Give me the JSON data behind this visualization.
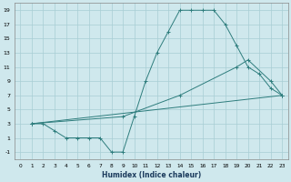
{
  "xlabel": "Humidex (Indice chaleur)",
  "xlim": [
    -0.5,
    23.5
  ],
  "ylim": [
    -2,
    20
  ],
  "xticks": [
    0,
    1,
    2,
    3,
    4,
    5,
    6,
    7,
    8,
    9,
    10,
    11,
    12,
    13,
    14,
    15,
    16,
    17,
    18,
    19,
    20,
    21,
    22,
    23
  ],
  "yticks": [
    -1,
    1,
    3,
    5,
    7,
    9,
    11,
    13,
    15,
    17,
    19
  ],
  "background_color": "#cfe8ed",
  "grid_color": "#a8cdd4",
  "line_color": "#2e7d7d",
  "line1_x": [
    1,
    2,
    3,
    4,
    5,
    6,
    7,
    8,
    9,
    10,
    11,
    12,
    13,
    14,
    15,
    16,
    17,
    18,
    19,
    20,
    21,
    22,
    23
  ],
  "line1_y": [
    3,
    3,
    2,
    1,
    1,
    1,
    1,
    -1,
    -1,
    4,
    9,
    13,
    16,
    19,
    19,
    19,
    19,
    17,
    14,
    11,
    10,
    8,
    7
  ],
  "line2_x": [
    1,
    23
  ],
  "line2_y": [
    3,
    7
  ],
  "line3_x": [
    1,
    9,
    14,
    19,
    20,
    22,
    23
  ],
  "line3_y": [
    3,
    4,
    7,
    11,
    12,
    9,
    7
  ]
}
